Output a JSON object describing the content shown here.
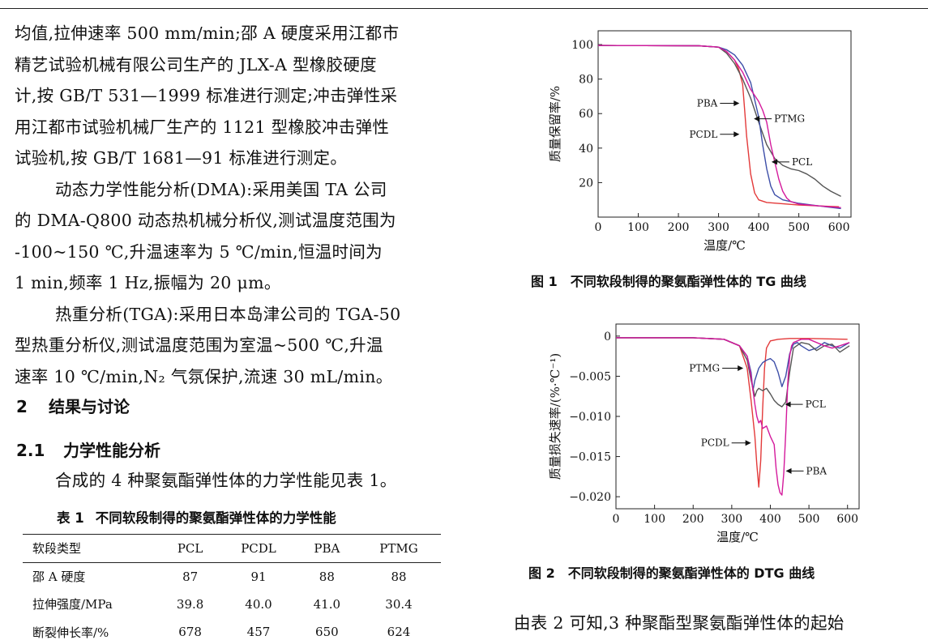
{
  "methods": {
    "lines": [
      "均值,拉伸速率 500 mm/min;邵 A 硬度采用江都市",
      "精艺试验机械有限公司生产的 JLX-A 型橡胶硬度",
      "计,按 GB/T 531—1999 标准进行测定;冲击弹性采",
      "用江都市试验机械厂生产的 1121 型橡胶冲击弹性",
      "试验机,按 GB/T 1681—91 标准进行测定。",
      "动态力学性能分析(DMA):采用美国 TA 公司",
      "的 DMA-Q800 动态热机械分析仪,测试温度范围为",
      "-100~150 ℃,升温速率为 5 ℃/min,恒温时间为",
      "1 min,频率 1 Hz,振幅为 20 μm。",
      "热重分析(TGA):采用日本岛津公司的 TGA-50",
      "型热重分析仪,测试温度范围为室温~500 ℃,升温",
      "速率 10 ℃/min,N₂ 气氛保护,流速 30 mL/min。"
    ]
  },
  "section": {
    "number": "2",
    "title": "结果与讨论"
  },
  "subsection": {
    "number": "2.1",
    "title": "力学性能分析"
  },
  "intro": "合成的 4 种聚氨酯弹性体的力学性能见表 1。",
  "table1": {
    "number": "表 1",
    "title": "不同软段制得的聚氨酯弹性体的力学性能",
    "columns": [
      "软段类型",
      "PCL",
      "PCDL",
      "PBA",
      "PTMG"
    ],
    "rows": [
      [
        "邵 A 硬度",
        "87",
        "91",
        "88",
        "88"
      ],
      [
        "拉伸强度/MPa",
        "39.8",
        "40.0",
        "41.0",
        "30.4"
      ],
      [
        "断裂伸长率/%",
        "678",
        "457",
        "650",
        "624"
      ]
    ]
  },
  "chart_data": [
    {
      "type": "line",
      "caption_number": "图 1",
      "caption": "不同软段制得的聚氨酯弹性体的 TG 曲线",
      "xlabel": "温度/℃",
      "ylabel": "质量保留率/%",
      "xlim": [
        0,
        630
      ],
      "ylim": [
        0,
        108
      ],
      "xticks": [
        "0",
        "100",
        "200",
        "300",
        "400",
        "500",
        "600"
      ],
      "yticks": [
        "20",
        "40",
        "60",
        "80",
        "100"
      ],
      "series": [
        {
          "name": "PBA",
          "color": "#e33a3a",
          "x": [
            0,
            250,
            300,
            320,
            340,
            350,
            360,
            365,
            370,
            380,
            390,
            400,
            420,
            500,
            600
          ],
          "y": [
            99.5,
            99.3,
            98.5,
            96,
            91,
            86,
            77,
            62,
            47,
            25,
            14,
            10,
            8.5,
            7,
            6
          ]
        },
        {
          "name": "PCDL",
          "color": "#555555",
          "x": [
            0,
            250,
            300,
            320,
            340,
            360,
            380,
            400,
            420,
            440,
            460,
            480,
            500,
            520,
            540,
            560,
            580,
            605
          ],
          "y": [
            99.5,
            99.3,
            98.5,
            95,
            89,
            80,
            69,
            55,
            42,
            34,
            30,
            28,
            27,
            25,
            22,
            18,
            15,
            12
          ]
        },
        {
          "name": "PTMG",
          "color": "#3d4ea8",
          "x": [
            0,
            250,
            300,
            320,
            340,
            360,
            380,
            400,
            410,
            420,
            430,
            440,
            460,
            500,
            550,
            605
          ],
          "y": [
            99.5,
            99.3,
            98.5,
            97,
            94,
            88,
            78,
            58,
            42,
            28,
            18,
            13,
            10,
            8,
            6.5,
            5
          ]
        },
        {
          "name": "PCL",
          "color": "#d41a9c",
          "x": [
            0,
            250,
            300,
            320,
            340,
            360,
            380,
            400,
            410,
            420,
            430,
            440,
            450,
            460,
            470,
            480,
            500,
            550,
            605
          ],
          "y": [
            99.5,
            99.3,
            98.5,
            96,
            91,
            84,
            74,
            67,
            62,
            55,
            42,
            32,
            22,
            15,
            11,
            9,
            7.5,
            6.5,
            5.5
          ]
        }
      ],
      "annotations": [
        "PBA",
        "PCDL",
        "PTMG",
        "PCL"
      ]
    },
    {
      "type": "line",
      "caption_number": "图 2",
      "caption": "不同软段制得的聚氨酯弹性体的 DTG 曲线",
      "xlabel": "温度/℃",
      "ylabel": "质量损失速率/(%·℃⁻¹)",
      "xlim": [
        0,
        630
      ],
      "ylim": [
        -0.0215,
        0.0015
      ],
      "xticks": [
        "0",
        "100",
        "200",
        "300",
        "400",
        "500",
        "600"
      ],
      "yticks": [
        "0",
        "−0.005",
        "−0.010",
        "−0.015",
        "−0.020"
      ],
      "series": [
        {
          "name": "PCDL",
          "color": "#e33a3a",
          "x": [
            0,
            100,
            200,
            280,
            320,
            340,
            350,
            360,
            365,
            370,
            375,
            380,
            385,
            390,
            400,
            420,
            450,
            500,
            600
          ],
          "y": [
            -0.0002,
            -0.0002,
            -0.0002,
            -0.0004,
            -0.0012,
            -0.004,
            -0.008,
            -0.0125,
            -0.016,
            -0.0188,
            -0.0155,
            -0.009,
            -0.004,
            -0.0015,
            -0.0006,
            -0.0004,
            -0.0003,
            -0.0003,
            -0.0004
          ]
        },
        {
          "name": "PTMG",
          "color": "#3d4ea8",
          "x": [
            0,
            100,
            200,
            280,
            320,
            340,
            350,
            355,
            360,
            370,
            380,
            390,
            400,
            410,
            420,
            430,
            440,
            450,
            460,
            470,
            480,
            500,
            520,
            540,
            560,
            580,
            605
          ],
          "y": [
            -0.0002,
            -0.0002,
            -0.0002,
            -0.0004,
            -0.0012,
            -0.0025,
            -0.0045,
            -0.0068,
            -0.0055,
            -0.004,
            -0.0033,
            -0.003,
            -0.0028,
            -0.0032,
            -0.0045,
            -0.0063,
            -0.005,
            -0.0022,
            -0.001,
            -0.0008,
            -0.0012,
            -0.0018,
            -0.0015,
            -0.0008,
            -0.0012,
            -0.0015,
            -0.0008
          ]
        },
        {
          "name": "PCL",
          "color": "#555555",
          "x": [
            0,
            100,
            200,
            280,
            320,
            340,
            350,
            360,
            365,
            370,
            380,
            390,
            400,
            410,
            420,
            430,
            440,
            450,
            460,
            480,
            500,
            520,
            540,
            560,
            580,
            605
          ],
          "y": [
            -0.0002,
            -0.0002,
            -0.0002,
            -0.0004,
            -0.0012,
            -0.003,
            -0.0055,
            -0.0075,
            -0.0068,
            -0.0065,
            -0.0068,
            -0.0065,
            -0.0072,
            -0.008,
            -0.0085,
            -0.0088,
            -0.0082,
            -0.0045,
            -0.0015,
            -0.0008,
            -0.001,
            -0.0018,
            -0.0012,
            -0.001,
            -0.002,
            -0.0012
          ]
        },
        {
          "name": "PBA",
          "color": "#d41a9c",
          "x": [
            0,
            100,
            200,
            280,
            320,
            340,
            350,
            360,
            365,
            370,
            375,
            380,
            390,
            400,
            410,
            415,
            420,
            425,
            430,
            435,
            440,
            445,
            450,
            455,
            460,
            480,
            500,
            520,
            540,
            560,
            580,
            605
          ],
          "y": [
            -0.0002,
            -0.0002,
            -0.0002,
            -0.0004,
            -0.0012,
            -0.0025,
            -0.005,
            -0.0085,
            -0.01,
            -0.0108,
            -0.0105,
            -0.0115,
            -0.0112,
            -0.0125,
            -0.0135,
            -0.0165,
            -0.0185,
            -0.0195,
            -0.0198,
            -0.017,
            -0.012,
            -0.006,
            -0.0025,
            -0.0012,
            -0.0008,
            -0.0004,
            -0.0004,
            -0.0008,
            -0.0012,
            -0.0015,
            -0.0012,
            -0.0008
          ]
        }
      ],
      "annotations": [
        "PTMG",
        "PCL",
        "PCDL",
        "PBA"
      ]
    }
  ],
  "bottom_text": "由表 2 可知,3 种聚酯型聚氨酯弹性体的起始"
}
